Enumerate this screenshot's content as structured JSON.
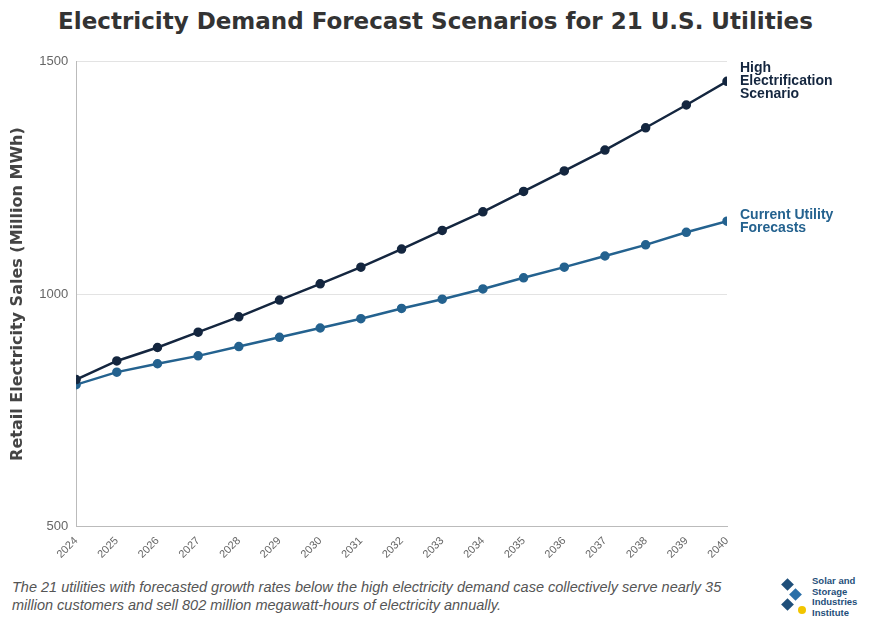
{
  "chart_data": {
    "type": "line",
    "title": "Electricity Demand Forecast Scenarios for 21 U.S. Utilities",
    "y_label": "Retail Electricity Sales (Million MWh)",
    "categories": [
      "2024",
      "2025",
      "2026",
      "2027",
      "2028",
      "2029",
      "2030",
      "2031",
      "2032",
      "2033",
      "2034",
      "2035",
      "2036",
      "2037",
      "2038",
      "2039",
      "2040"
    ],
    "series": [
      {
        "name": "High Electrification Scenario",
        "color": "#14263f",
        "marker": "circle",
        "values": [
          816,
          856,
          885,
          918,
          951,
          987,
          1022,
          1058,
          1097,
          1137,
          1177,
          1221,
          1265,
          1310,
          1358,
          1407,
          1458
        ]
      },
      {
        "name": "Current Utility Forecasts",
        "color": "#24628f",
        "marker": "circle",
        "values": [
          805,
          832,
          850,
          867,
          887,
          907,
          927,
          947,
          969,
          989,
          1011,
          1035,
          1058,
          1082,
          1106,
          1133,
          1157
        ]
      }
    ],
    "ylim": [
      500,
      1500
    ],
    "yticks": [
      500,
      1000,
      1500
    ],
    "grid": true,
    "footnote": "The 21 utilities with forecasted growth rates below the high electricity demand case collectively serve nearly 35 million customers and sell 802 million megawatt-hours of electricity annually.",
    "logo": "Solar and Storage Industries Institute"
  }
}
